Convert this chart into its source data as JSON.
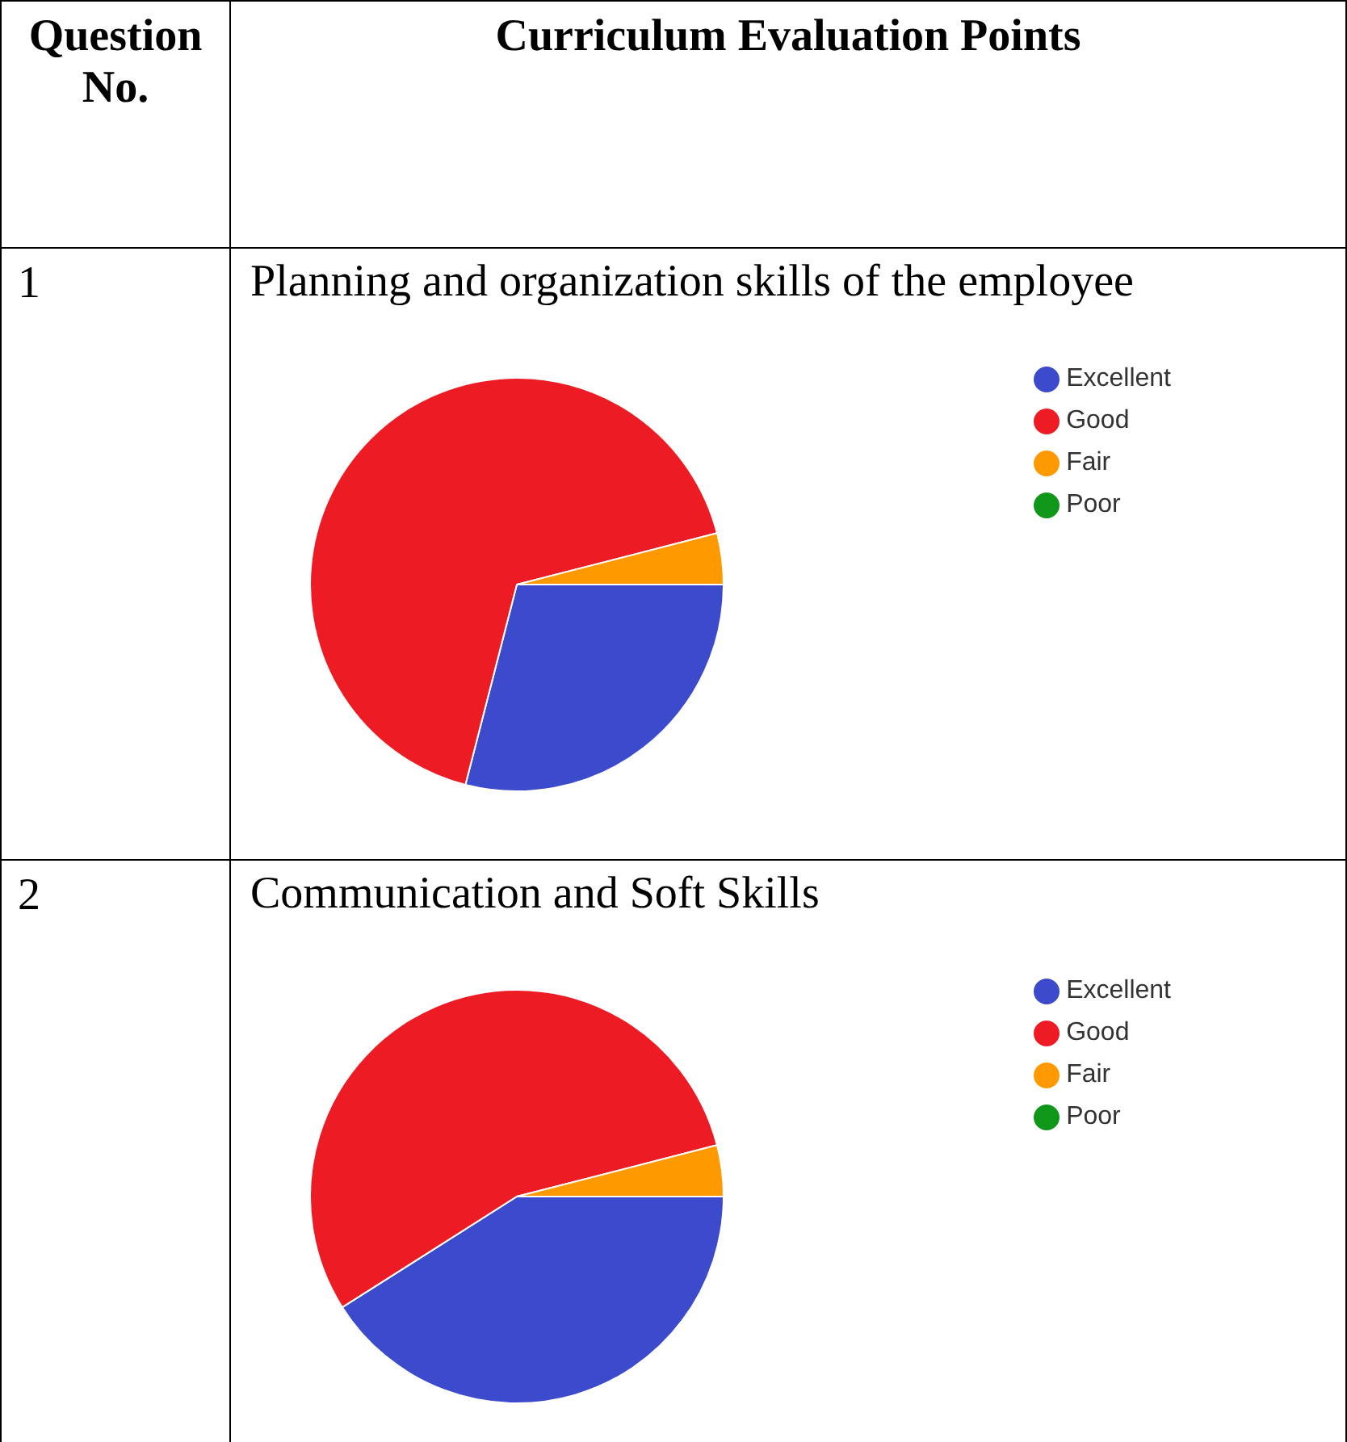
{
  "chart_data": [
    {
      "type": "pie",
      "title": "Planning and organization skills of the employee",
      "categories": [
        "Excellent",
        "Good",
        "Fair",
        "Poor"
      ],
      "values": [
        29,
        67,
        4,
        0
      ],
      "colors": [
        "#3c4acc",
        "#ed1c24",
        "#ff9900",
        "#109618"
      ],
      "legend": "right",
      "annotations": [
        "Question No.",
        "Curriculum Evaluation Points",
        "1"
      ]
    },
    {
      "type": "pie",
      "title": "Communication and Soft Skills",
      "categories": [
        "Excellent",
        "Good",
        "Fair",
        "Poor"
      ],
      "values": [
        41,
        55,
        4,
        0
      ],
      "colors": [
        "#3c4acc",
        "#ed1c24",
        "#ff9900",
        "#109618"
      ],
      "legend": "right",
      "annotations": [
        "2"
      ]
    }
  ]
}
